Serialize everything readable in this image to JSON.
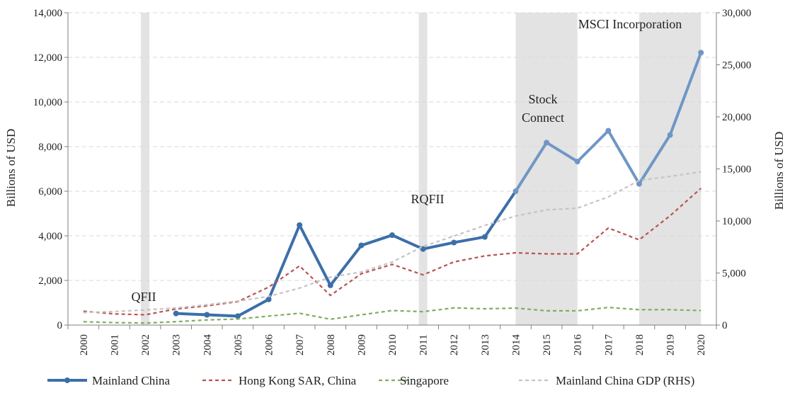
{
  "chart_data": {
    "type": "line",
    "title": "",
    "xlabel": "",
    "ylabel": "Billions of USD",
    "ylabel_right": "Billions of USD",
    "x": [
      "2000",
      "2001",
      "2002",
      "2003",
      "2004",
      "2005",
      "2006",
      "2007",
      "2008",
      "2009",
      "2010",
      "2011",
      "2012",
      "2013",
      "2014",
      "2015",
      "2016",
      "2017",
      "2018",
      "2019",
      "2020"
    ],
    "ylim": [
      0,
      14000
    ],
    "ylim_right": [
      0,
      30000
    ],
    "yticks": [
      "0",
      "2,000",
      "4,000",
      "6,000",
      "8,000",
      "10,000",
      "12,000",
      "14,000"
    ],
    "yticks_right": [
      "0",
      "5,000",
      "10,000",
      "15,000",
      "20,000",
      "25,000",
      "30,000"
    ],
    "grid": "horizontal dashed",
    "legend_placement": "bottom",
    "series": [
      {
        "name": "Mainland China",
        "axis": "left",
        "style": "solid-markers",
        "color": "#3c6fa9",
        "values": [
          null,
          null,
          null,
          520,
          460,
          400,
          1150,
          4480,
          1780,
          3570,
          4030,
          3410,
          3700,
          3950,
          6000,
          8180,
          7330,
          8710,
          6330,
          8520,
          12210
        ]
      },
      {
        "name": "Hong Kong SAR, China",
        "axis": "left",
        "style": "dashed",
        "color": "#b85450",
        "values": [
          620,
          500,
          460,
          720,
          860,
          1050,
          1700,
          2650,
          1330,
          2300,
          2720,
          2250,
          2830,
          3100,
          3240,
          3190,
          3190,
          4350,
          3820,
          4900,
          6130
        ]
      },
      {
        "name": "Singapore",
        "axis": "left",
        "style": "dashed",
        "color": "#7fae5e",
        "values": [
          150,
          110,
          90,
          150,
          230,
          270,
          400,
          530,
          260,
          460,
          650,
          600,
          770,
          730,
          760,
          640,
          640,
          790,
          690,
          690,
          650
        ]
      },
      {
        "name": "Mainland China GDP (RHS)",
        "axis": "right",
        "style": "dashed",
        "color": "#c4c4c4",
        "values": [
          1200,
          1300,
          1450,
          1650,
          1950,
          2300,
          2750,
          3550,
          4600,
          5100,
          6050,
          7550,
          8550,
          9570,
          10480,
          11060,
          11230,
          12310,
          13890,
          14280,
          14720
        ]
      }
    ],
    "shaded_periods": [
      {
        "from": "2002",
        "to": "2002"
      },
      {
        "from": "2011",
        "to": "2011"
      },
      {
        "from": "2014",
        "to": "2016"
      },
      {
        "from": "2018",
        "to": "2020"
      }
    ],
    "annotations": [
      {
        "text": "QFII",
        "x": "2002"
      },
      {
        "text": "RQFII",
        "x": "2011"
      },
      {
        "text": "Stock",
        "x": "2015"
      },
      {
        "text": "Connect",
        "x": "2015"
      },
      {
        "text": "MSCI Incorporation",
        "x": "2019"
      }
    ]
  }
}
